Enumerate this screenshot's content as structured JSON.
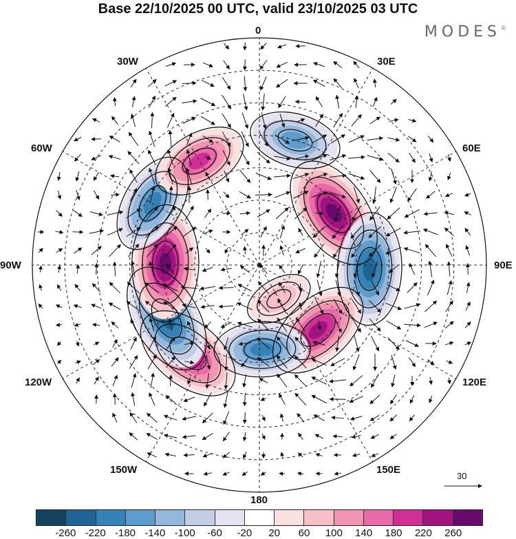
{
  "title": "Base 22/10/2025 00 UTC, valid 23/10/2025 03 UTC",
  "brand": {
    "name": "MODES",
    "mark": "©"
  },
  "longitude_labels": {
    "lon_0": "0",
    "lon_30e": "30E",
    "lon_60e": "60E",
    "lon_90e": "90E",
    "lon_120e": "120E",
    "lon_150e": "150E",
    "lon_180": "180",
    "lon_150w": "150W",
    "lon_120w": "120W",
    "lon_90w": "90W",
    "lon_60w": "60W",
    "lon_30w": "30W"
  },
  "reference_vector": {
    "value": "30"
  },
  "colorbar": {
    "colors": [
      "#15425e",
      "#1f6494",
      "#3682b6",
      "#5d9ccd",
      "#93b8dc",
      "#c3cee6",
      "#e6e3f0",
      "#ffffff",
      "#fbe0e2",
      "#f7bfc7",
      "#f195b3",
      "#e86aa8",
      "#cf3096",
      "#a1137e",
      "#6b0a6e"
    ],
    "ticks": [
      "-260",
      "-220",
      "-180",
      "-140",
      "-100",
      "-60",
      "-20",
      "20",
      "60",
      "100",
      "140",
      "180",
      "220",
      "260"
    ]
  },
  "anomaly_centers": [
    {
      "name": "center-ural-high",
      "lon": 55,
      "colat": 28,
      "value": 270
    },
    {
      "name": "center-siberia-low",
      "lon": 92,
      "colat": 34,
      "value": -250
    },
    {
      "name": "center-east-asia-high",
      "lon": 138,
      "colat": 27,
      "value": 230
    },
    {
      "name": "center-pacific-low",
      "lon": 178,
      "colat": 26,
      "value": -180
    },
    {
      "name": "center-gulf-alaska-high",
      "lon": 219,
      "colat": 35,
      "value": 240
    },
    {
      "name": "center-north-america-low",
      "lon": 240,
      "colat": 33,
      "value": -250
    },
    {
      "name": "center-hudson-high",
      "lon": 271,
      "colat": 29,
      "value": 270
    },
    {
      "name": "center-labrador-low",
      "lon": 300,
      "colat": 38,
      "value": -200
    },
    {
      "name": "center-atlantic-high",
      "lon": 330,
      "colat": 37,
      "value": 180
    },
    {
      "name": "center-scandinavia-low",
      "lon": 16,
      "colat": 40,
      "value": -160
    },
    {
      "name": "center-arctic-high",
      "lon": 150,
      "colat": 12,
      "value": 60
    }
  ]
}
